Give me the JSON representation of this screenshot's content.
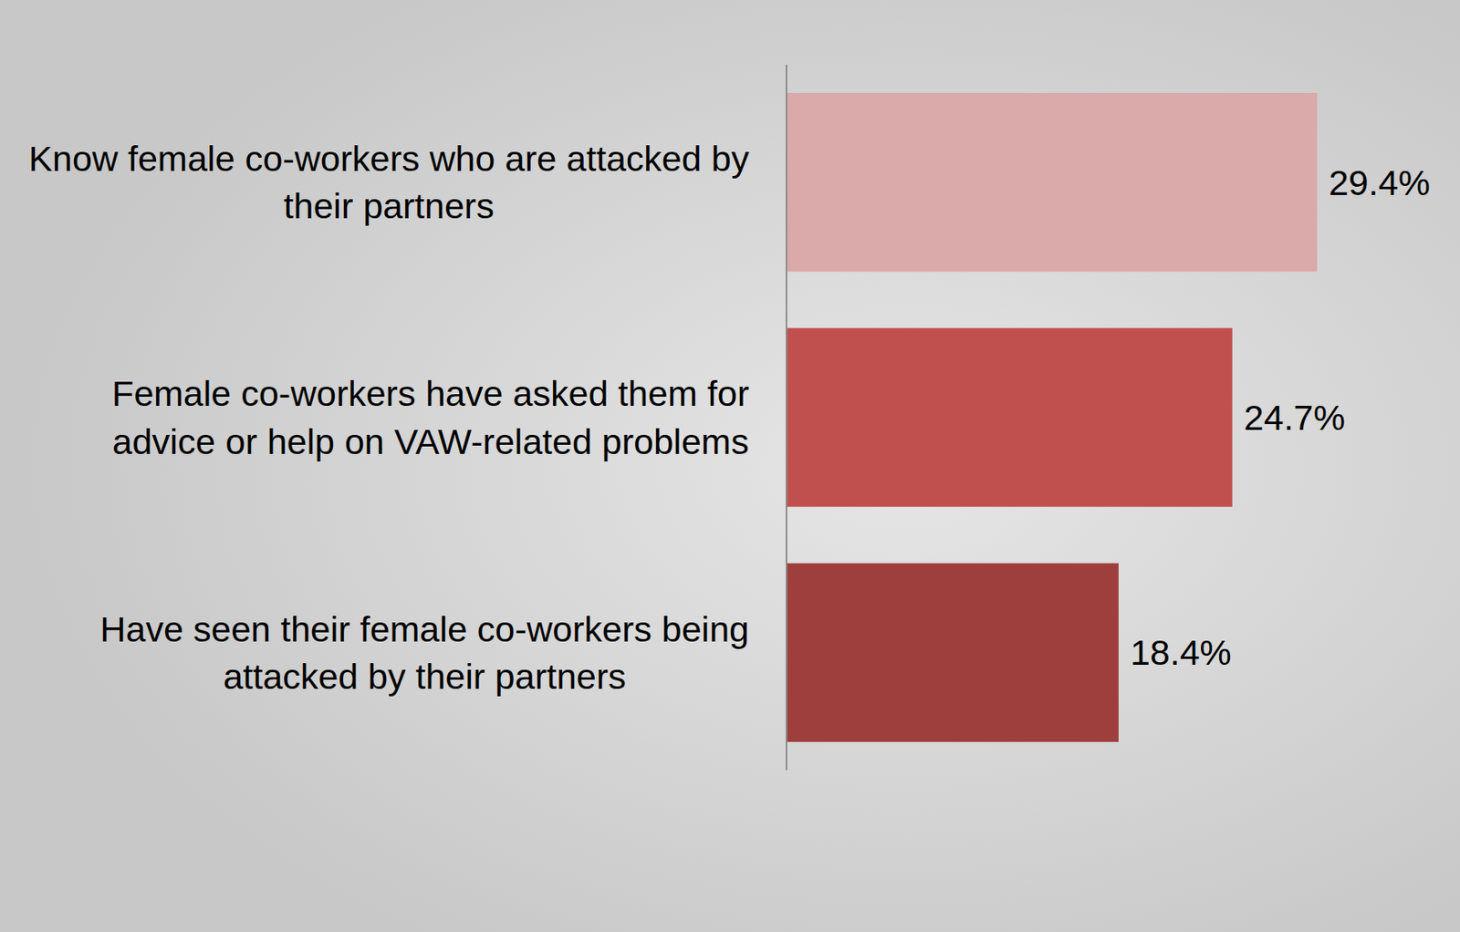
{
  "chart_data": {
    "type": "bar",
    "orientation": "horizontal",
    "categories": [
      "Know female co-workers who are attacked by their partners",
      "Female co-workers have asked them for advice or help on VAW-related problems",
      "Have seen their female co-workers being attacked by their partners"
    ],
    "values": [
      29.4,
      24.7,
      18.4
    ],
    "value_labels": [
      "29.4%",
      "24.7%",
      "18.4%"
    ],
    "colors": [
      "#daa9aa",
      "#c0504d",
      "#9e3f3d"
    ],
    "xlim": [
      0,
      30
    ],
    "data_labels": true,
    "tick_labels": false,
    "grid": false
  }
}
